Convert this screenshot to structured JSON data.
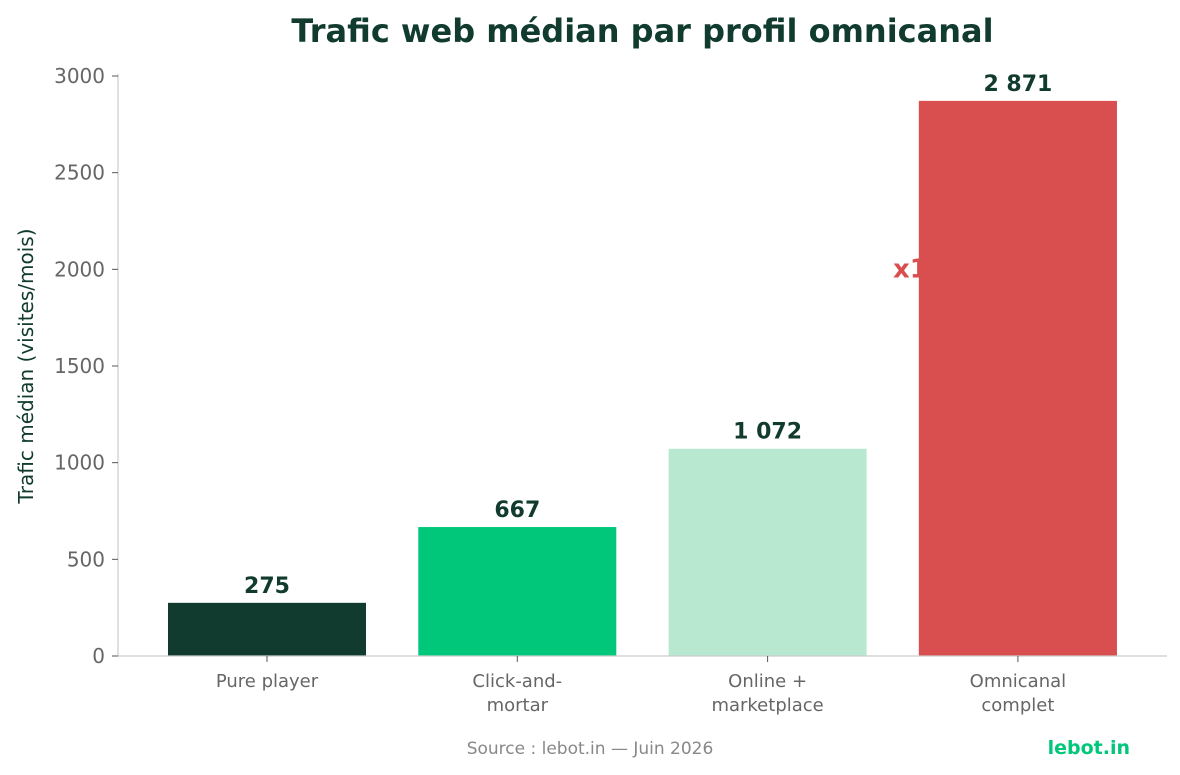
{
  "chart_data": {
    "type": "bar",
    "title": "Trafic web médian par profil omnicanal",
    "ylabel": "Trafic médian (visites/mois)",
    "xlabel": "",
    "categories": [
      "Pure player",
      "Click-and-\nmortar",
      "Online +\nmarketplace",
      "Omnicanal\ncomplet"
    ],
    "values": [
      275,
      667,
      1072,
      2871
    ],
    "value_labels": [
      "275",
      "667",
      "1 072",
      "2 871"
    ],
    "colors": [
      "#103b2e",
      "#00c77a",
      "#b8e8d0",
      "#d94f4f"
    ],
    "ylim": [
      0,
      3000
    ],
    "yticks": [
      0,
      500,
      1000,
      1500,
      2000,
      2500,
      3000
    ],
    "annotation": {
      "text": "x1",
      "color": "#d94f4f",
      "y": 2050
    },
    "grid": false,
    "legend": "none"
  },
  "footer": {
    "source": "Source : lebot.in — Juin 2026",
    "brand": "lebot.in"
  }
}
